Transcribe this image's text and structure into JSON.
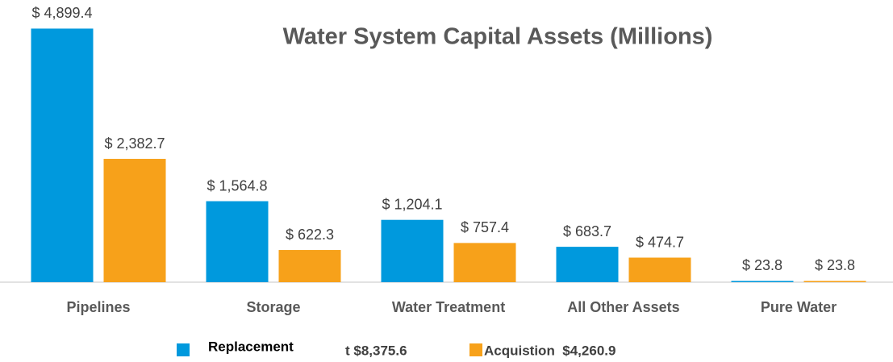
{
  "chart_data": {
    "type": "bar",
    "title": "Water System Capital Assets (Millions)",
    "categories": [
      "Pipelines",
      "Storage",
      "Water Treatment",
      "All Other Assets",
      "Pure Water"
    ],
    "series": [
      {
        "name": "Replacement",
        "color": "#0099dd",
        "values": [
          4899.4,
          1564.8,
          1204.1,
          683.7,
          23.8
        ],
        "value_labels": [
          "$ 4,899.4",
          "$ 1,564.8",
          "$ 1,204.1",
          "$ 683.7",
          "$ 23.8"
        ]
      },
      {
        "name": "Acquistion  $4,260.9",
        "color": "#f7a11a",
        "values": [
          2382.7,
          622.3,
          757.4,
          474.7,
          23.8
        ],
        "value_labels": [
          "$ 2,382.7",
          "$ 622.3",
          "$ 757.4",
          "$ 474.7",
          "$ 23.8"
        ]
      }
    ],
    "legend_overflow_text": "t $8,375.6",
    "ylim": [
      0,
      5000
    ]
  }
}
